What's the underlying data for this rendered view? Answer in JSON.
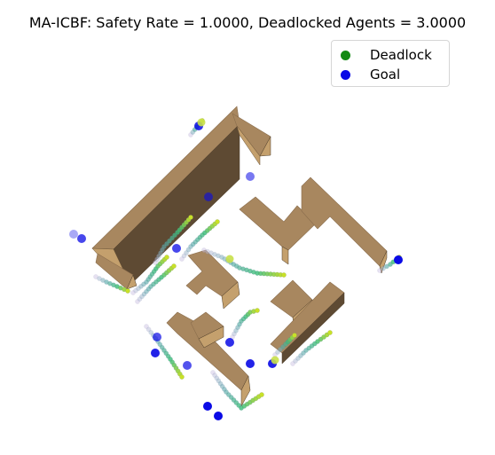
{
  "chart_data": {
    "type": "scatter",
    "title": "MA-ICBF: Safety Rate = 1.0000, Deadlocked Agents = 3.0000",
    "xlabel": "",
    "ylabel": "",
    "axes_visible": false,
    "legend": {
      "position": "top-right",
      "entries": [
        {
          "label": "Deadlock",
          "color": "#138a13"
        },
        {
          "label": "Goal",
          "color": "#0a0ae6"
        }
      ]
    },
    "safety_rate": 1.0,
    "deadlocked_agents": 3.0,
    "colors": {
      "wall_top": "#a8875f",
      "wall_side_light": "#c4a06d",
      "wall_side_dark": "#5e4a33",
      "goal": "#0a0ae6",
      "deadlock": "#138a13"
    }
  }
}
